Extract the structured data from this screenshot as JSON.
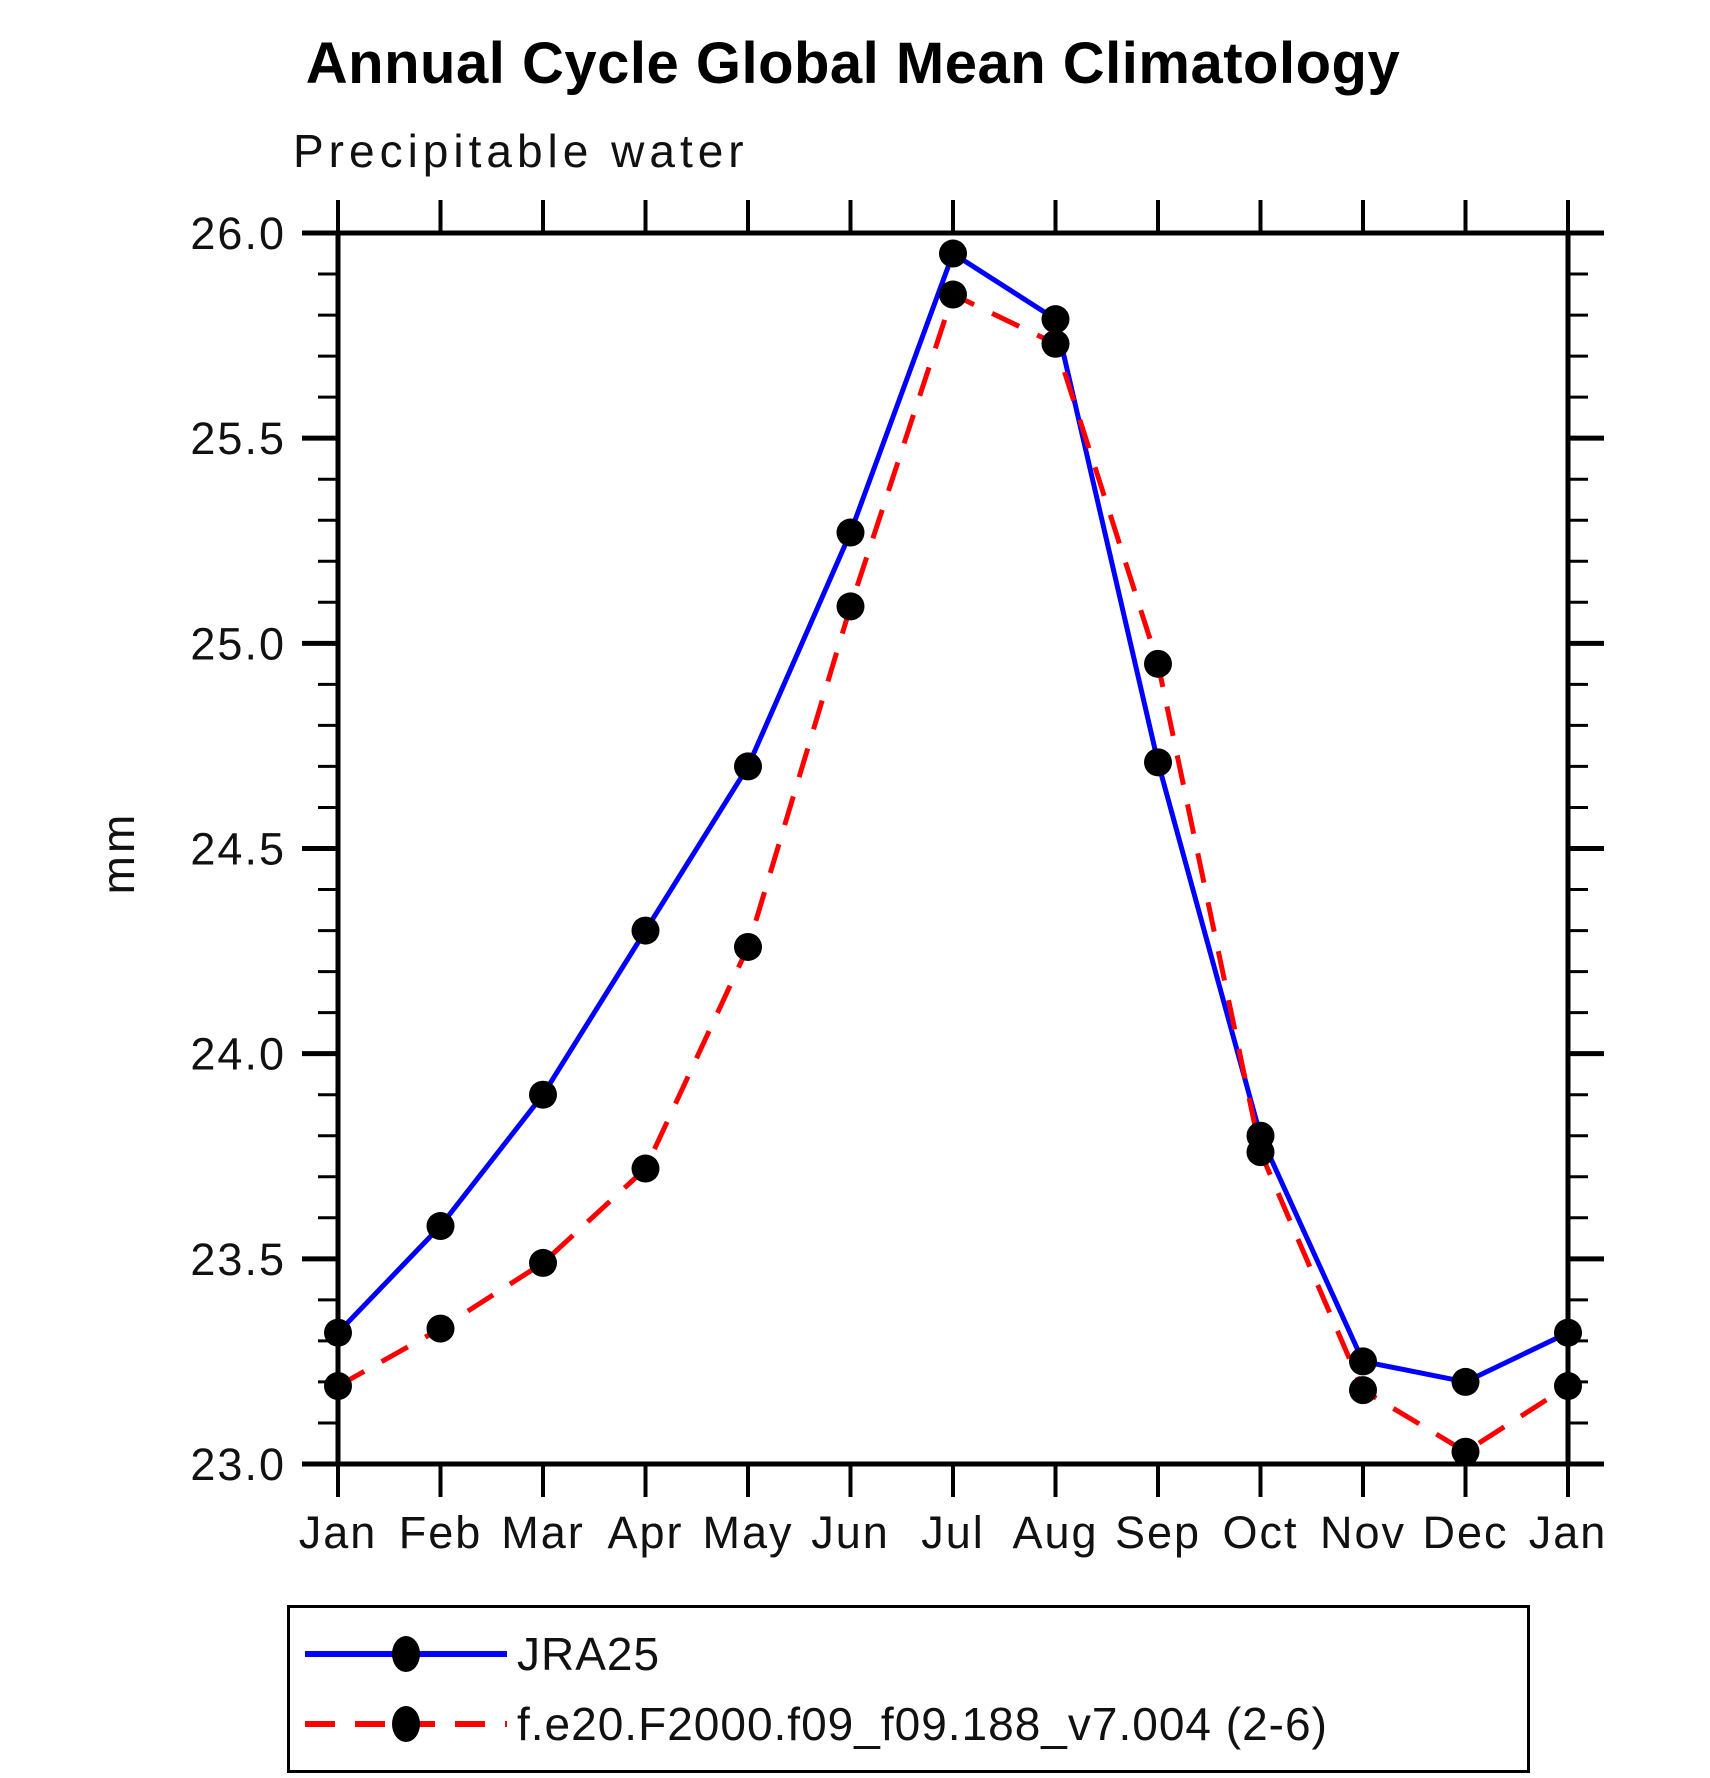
{
  "title": "Annual Cycle Global Mean Climatology",
  "subtitle": "Precipitable water",
  "ylabel": "mm",
  "colors": {
    "jra25_line": "#0000ff",
    "model_line": "#ff0000",
    "marker": "#000000",
    "axis": "#000000"
  },
  "chart_data": {
    "type": "line",
    "x": [
      "Jan",
      "Feb",
      "Mar",
      "Apr",
      "May",
      "Jun",
      "Jul",
      "Aug",
      "Sep",
      "Oct",
      "Nov",
      "Dec",
      "Jan"
    ],
    "xlabel": "",
    "ylabel": "mm",
    "ylim": [
      23.0,
      26.0
    ],
    "ytick_major_step": 0.5,
    "ytick_minor_step": 0.1,
    "ytick_labels": [
      "23.0",
      "23.5",
      "24.0",
      "24.5",
      "25.0",
      "25.5",
      "26.0"
    ],
    "grid": false,
    "legend_position": "bottom",
    "series": [
      {
        "name": "JRA25",
        "color": "#0000ff",
        "style": "solid",
        "marker": "circle",
        "marker_color": "#000000",
        "values": [
          23.32,
          23.58,
          23.9,
          24.3,
          24.7,
          25.27,
          25.95,
          25.79,
          24.71,
          23.8,
          23.25,
          23.2,
          23.32
        ]
      },
      {
        "name": "f.e20.F2000.f09_f09.188_v7.004 (2-6)",
        "color": "#ff0000",
        "style": "dashed",
        "marker": "circle",
        "marker_color": "#000000",
        "values": [
          23.19,
          23.33,
          23.49,
          23.72,
          24.26,
          25.09,
          25.85,
          25.73,
          24.95,
          23.76,
          23.18,
          23.03,
          23.19
        ]
      }
    ]
  }
}
